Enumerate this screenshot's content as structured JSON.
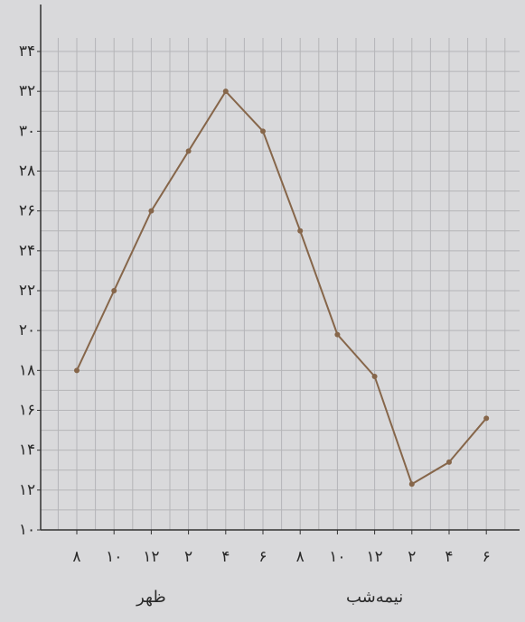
{
  "chart_data": {
    "type": "line",
    "categories": [
      "۸",
      "۱۰",
      "۱۲",
      "۲",
      "۴",
      "۶",
      "۸",
      "۱۰",
      "۱۲",
      "۲",
      "۴",
      "۶"
    ],
    "values": [
      18,
      22,
      26,
      29,
      32,
      30,
      25,
      19.8,
      17.7,
      12.3,
      13.4,
      15.6
    ],
    "color": "#86664a",
    "ylim": [
      10,
      34
    ],
    "yticks": [
      {
        "value": 10,
        "label": "۱۰"
      },
      {
        "value": 12,
        "label": "۱۲"
      },
      {
        "value": 14,
        "label": "۱۴"
      },
      {
        "value": 16,
        "label": "۱۶"
      },
      {
        "value": 18,
        "label": "۱۸"
      },
      {
        "value": 20,
        "label": "۲۰"
      },
      {
        "value": 22,
        "label": "۲۲"
      },
      {
        "value": 24,
        "label": "۲۴"
      },
      {
        "value": 26,
        "label": "۲۶"
      },
      {
        "value": 28,
        "label": "۲۸"
      },
      {
        "value": 30,
        "label": "۳۰"
      },
      {
        "value": 32,
        "label": "۳۲"
      },
      {
        "value": 34,
        "label": "۳۴"
      }
    ],
    "grid": true,
    "annotations": [
      {
        "text": "ظهر",
        "category": 2
      },
      {
        "text": "نیمه‌شب",
        "category": 8
      }
    ]
  }
}
